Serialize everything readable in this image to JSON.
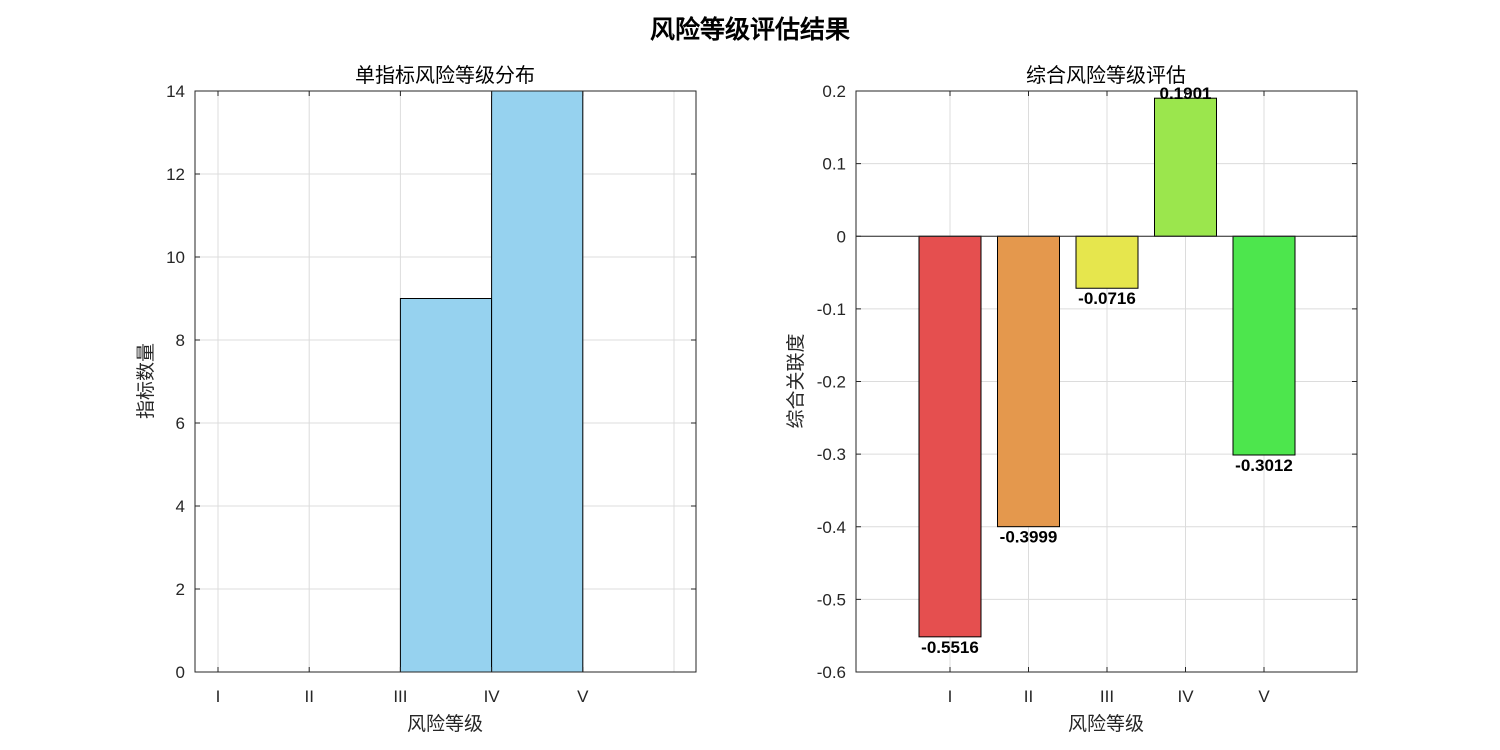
{
  "figure_title": "风险等级评估结果",
  "chart_data": [
    {
      "type": "bar",
      "title": "单指标风险等级分布",
      "xlabel": "风险等级",
      "ylabel": "指标数量",
      "categories": [
        "I",
        "II",
        "III",
        "IV",
        "V"
      ],
      "values": [
        0,
        0,
        9,
        14,
        0
      ],
      "bar_color": "#96d2ef",
      "ylim": [
        0,
        14
      ],
      "yticks": [
        0,
        2,
        4,
        6,
        8,
        10,
        12,
        14
      ],
      "ytick_labels": [
        "0",
        "2",
        "4",
        "6",
        "8",
        "10",
        "12",
        "14"
      ],
      "grid": true
    },
    {
      "type": "bar",
      "title": "综合风险等级评估",
      "xlabel": "风险等级",
      "ylabel": "综合关联度",
      "categories": [
        "I",
        "II",
        "III",
        "IV",
        "V"
      ],
      "values": [
        -0.5516,
        -0.3999,
        -0.0716,
        0.1901,
        -0.3012
      ],
      "data_labels": [
        "-0.5516",
        "-0.3999",
        "-0.0716",
        "0.1901",
        "-0.3012"
      ],
      "bar_colors": [
        "#e54f4f",
        "#e4984d",
        "#e6e64d",
        "#9be64d",
        "#4de64d"
      ],
      "ylim": [
        -0.6,
        0.2
      ],
      "yticks": [
        -0.6,
        -0.5,
        -0.4,
        -0.3,
        -0.2,
        -0.1,
        0,
        0.1,
        0.2
      ],
      "ytick_labels": [
        "-0.6",
        "-0.5",
        "-0.4",
        "-0.3",
        "-0.2",
        "-0.1",
        "0",
        "0.1",
        "0.2"
      ],
      "grid": true
    }
  ]
}
